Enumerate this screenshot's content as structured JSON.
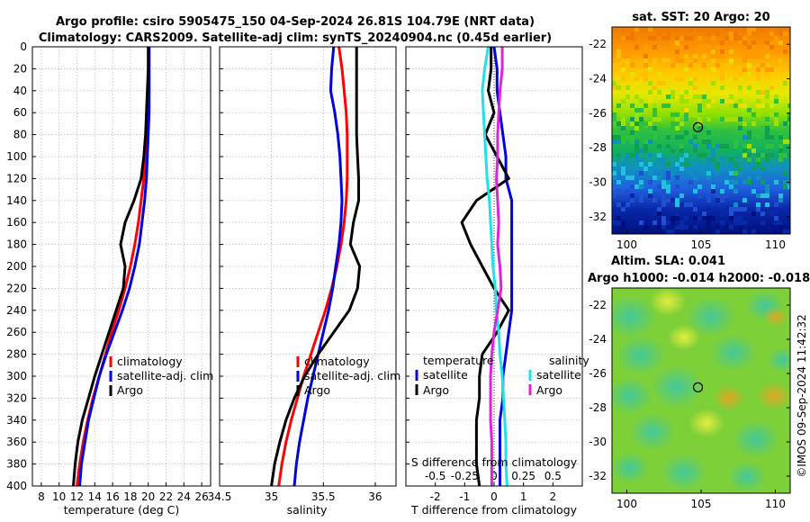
{
  "figure": {
    "title_line1": "Argo profile: csiro 5905475_150 04-Sep-2024 26.81S 104.79E (NRT data)",
    "title_line2": "Climatology: CARS2009. Satellite-adj clim: synTS_20240904.nc (0.45d earlier)",
    "copyright": "©IMOS 09-Sep-2024 11:42:32"
  },
  "colors": {
    "climatology": "#ff0000",
    "satellite": "#0000dd",
    "argo": "#000000",
    "satellite_salinity": "#22e0e8",
    "argo_salinity": "#dd22dd"
  },
  "chart_data": [
    {
      "type": "line",
      "id": "temperature",
      "xlabel": "temperature (deg C)",
      "ylabel": "",
      "xlim": [
        7,
        27
      ],
      "ylim": [
        400,
        0
      ],
      "xticks": [
        "8",
        "10",
        "12",
        "14",
        "16",
        "18",
        "20",
        "22",
        "24",
        "26"
      ],
      "xtick_values": [
        8,
        10,
        12,
        14,
        16,
        18,
        20,
        22,
        24,
        26
      ],
      "yticks": [
        "0",
        "20",
        "40",
        "60",
        "80",
        "100",
        "120",
        "140",
        "160",
        "180",
        "200",
        "220",
        "240",
        "260",
        "280",
        "300",
        "320",
        "340",
        "360",
        "380",
        "400"
      ],
      "grid": true,
      "legend": [
        "climatology",
        "satellite-adj. clim",
        "Argo"
      ],
      "series": [
        {
          "name": "climatology",
          "color": "#ff0000",
          "x": [
            20.1,
            20.1,
            20.1,
            20.0,
            19.9,
            19.7,
            19.5,
            19.2,
            18.9,
            18.5,
            18.0,
            17.4,
            16.7,
            15.9,
            15.2,
            14.5,
            13.8,
            13.2,
            12.7,
            12.3,
            12.0
          ],
          "y": [
            0,
            20,
            40,
            60,
            80,
            100,
            120,
            140,
            160,
            180,
            200,
            220,
            240,
            260,
            280,
            300,
            320,
            340,
            360,
            380,
            400
          ]
        },
        {
          "name": "satellite-adj. clim",
          "color": "#0000dd",
          "x": [
            20.1,
            20.1,
            20.1,
            20.1,
            20.0,
            19.9,
            19.8,
            19.6,
            19.3,
            19.0,
            18.5,
            17.9,
            17.1,
            16.2,
            15.3,
            14.5,
            13.9,
            13.3,
            12.9,
            12.5,
            12.3
          ],
          "y": [
            0,
            20,
            40,
            60,
            80,
            100,
            120,
            140,
            160,
            180,
            200,
            220,
            240,
            260,
            280,
            300,
            320,
            340,
            360,
            380,
            400
          ]
        },
        {
          "name": "Argo",
          "color": "#000000",
          "x": [
            20.0,
            20.0,
            19.9,
            19.8,
            19.7,
            19.5,
            19.2,
            18.4,
            17.4,
            16.9,
            17.4,
            17.2,
            16.4,
            15.6,
            14.8,
            14.0,
            13.3,
            12.6,
            12.1,
            11.8,
            11.6
          ],
          "y": [
            0,
            20,
            40,
            60,
            80,
            100,
            120,
            140,
            160,
            180,
            200,
            220,
            240,
            260,
            280,
            300,
            320,
            340,
            360,
            380,
            400
          ]
        }
      ]
    },
    {
      "type": "line",
      "id": "salinity",
      "xlabel": "salinity",
      "ylabel": "",
      "xlim": [
        34.5,
        36.2
      ],
      "ylim": [
        400,
        0
      ],
      "xticks": [
        "34.5",
        "35",
        "35.5",
        "36"
      ],
      "xtick_values": [
        34.5,
        35,
        35.5,
        36
      ],
      "grid": true,
      "legend": [
        "climatology",
        "satellite-adj. clim",
        "Argo"
      ],
      "series": [
        {
          "name": "climatology",
          "color": "#ff0000",
          "x": [
            35.65,
            35.68,
            35.7,
            35.72,
            35.73,
            35.73,
            35.73,
            35.72,
            35.7,
            35.67,
            35.63,
            35.58,
            35.52,
            35.45,
            35.38,
            35.31,
            35.25,
            35.19,
            35.14,
            35.1,
            35.07
          ],
          "y": [
            0,
            20,
            40,
            60,
            80,
            100,
            120,
            140,
            160,
            180,
            200,
            220,
            240,
            260,
            280,
            300,
            320,
            340,
            360,
            380,
            400
          ]
        },
        {
          "name": "satellite-adj. clim",
          "color": "#0000dd",
          "x": [
            35.6,
            35.58,
            35.57,
            35.61,
            35.64,
            35.66,
            35.67,
            35.68,
            35.67,
            35.65,
            35.62,
            35.59,
            35.55,
            35.5,
            35.45,
            35.4,
            35.35,
            35.31,
            35.27,
            35.24,
            35.22
          ],
          "y": [
            0,
            20,
            40,
            60,
            80,
            100,
            120,
            140,
            160,
            180,
            200,
            220,
            240,
            260,
            280,
            300,
            320,
            340,
            360,
            380,
            400
          ]
        },
        {
          "name": "Argo",
          "color": "#000000",
          "x": [
            35.82,
            35.82,
            35.82,
            35.82,
            35.82,
            35.83,
            35.84,
            35.84,
            35.79,
            35.76,
            35.85,
            35.83,
            35.75,
            35.6,
            35.45,
            35.32,
            35.22,
            35.14,
            35.08,
            35.03,
            35.0
          ],
          "y": [
            0,
            20,
            40,
            60,
            80,
            100,
            120,
            140,
            160,
            180,
            200,
            220,
            240,
            260,
            280,
            300,
            320,
            340,
            360,
            380,
            400
          ]
        }
      ]
    },
    {
      "type": "line",
      "id": "differences",
      "xlabel": "T difference from climatology",
      "xlabel_top": "S difference from climatology",
      "xlim": [
        -3,
        3
      ],
      "ylim": [
        400,
        0
      ],
      "xticks": [
        "-2",
        "-1",
        "0",
        "1",
        "2"
      ],
      "xtick_values": [
        -2,
        -1,
        0,
        1,
        2
      ],
      "xticks_top": [
        "-0.5",
        "-0.25",
        "0",
        "0.25",
        "0.5"
      ],
      "xtick_top_values": [
        -0.5,
        -0.25,
        0,
        0.25,
        0.5
      ],
      "legend_temperature_title": "temperature",
      "legend_salinity_title": "salinity",
      "legend_temperature": [
        "satellite",
        "Argo"
      ],
      "legend_salinity": [
        "satellite",
        "Argo"
      ],
      "series": [
        {
          "name": "temperature satellite",
          "color": "#0000dd",
          "x": [
            0.0,
            0.1,
            0.1,
            0.2,
            0.3,
            0.4,
            0.4,
            0.6,
            0.6,
            0.6,
            0.6,
            0.6,
            0.6,
            0.5,
            0.4,
            0.3,
            0.3,
            0.2,
            0.2,
            0.2,
            0.2
          ],
          "y": [
            0,
            20,
            40,
            60,
            80,
            100,
            120,
            140,
            160,
            180,
            200,
            220,
            240,
            260,
            280,
            300,
            320,
            340,
            360,
            380,
            400
          ]
        },
        {
          "name": "temperature Argo",
          "color": "#000000",
          "x": [
            -0.1,
            -0.1,
            -0.2,
            0.0,
            -0.3,
            0.1,
            0.5,
            -0.6,
            -1.1,
            -0.8,
            -0.4,
            0.0,
            0.5,
            0.1,
            -0.4,
            -0.5,
            -0.5,
            -0.6,
            -0.6,
            -0.6,
            -0.5
          ],
          "y": [
            0,
            20,
            40,
            60,
            80,
            100,
            120,
            140,
            160,
            180,
            200,
            220,
            240,
            260,
            280,
            300,
            320,
            340,
            360,
            380,
            400
          ]
        },
        {
          "name": "salinity satellite",
          "color": "#22e0e8",
          "x_salinity": [
            -0.05,
            -0.08,
            -0.1,
            -0.09,
            -0.08,
            -0.07,
            -0.06,
            -0.04,
            -0.03,
            -0.02,
            -0.01,
            0.01,
            0.02,
            0.04,
            0.05,
            0.07,
            0.08,
            0.09,
            0.1,
            0.1,
            0.11
          ],
          "y": [
            0,
            20,
            40,
            60,
            80,
            100,
            120,
            140,
            160,
            180,
            200,
            220,
            240,
            260,
            280,
            300,
            320,
            340,
            360,
            380,
            400
          ]
        },
        {
          "name": "salinity Argo",
          "color": "#dd22dd",
          "x_salinity": [
            0.07,
            0.07,
            0.05,
            0.04,
            0.03,
            0.03,
            0.02,
            0.03,
            0.04,
            0.03,
            0.05,
            0.06,
            0.03,
            0.0,
            -0.02,
            -0.03,
            -0.03,
            -0.03,
            -0.02,
            -0.02,
            -0.02
          ],
          "y": [
            0,
            20,
            40,
            60,
            80,
            100,
            120,
            140,
            160,
            180,
            200,
            220,
            240,
            260,
            280,
            300,
            320,
            340,
            360,
            380,
            400
          ]
        }
      ]
    },
    {
      "type": "heatmap",
      "id": "sst_map",
      "title": "sat. SST: 20 Argo: 20",
      "xlim": [
        99,
        111
      ],
      "ylim": [
        -33,
        -21
      ],
      "xticks": [
        "100",
        "105",
        "110"
      ],
      "xtick_values": [
        100,
        105,
        110
      ],
      "yticks": [
        "-22",
        "-24",
        "-26",
        "-28",
        "-30",
        "-32"
      ],
      "ytick_values": [
        -22,
        -24,
        -26,
        -28,
        -30,
        -32
      ],
      "marker": {
        "lon": 104.79,
        "lat": -26.81
      }
    },
    {
      "type": "heatmap",
      "id": "sla_map",
      "title_line1": "Altim. SLA: 0.041",
      "title_line2": "Argo h1000: -0.014 h2000: -0.018",
      "xlim": [
        99,
        111
      ],
      "ylim": [
        -33,
        -21
      ],
      "xticks": [
        "100",
        "105",
        "110"
      ],
      "xtick_values": [
        100,
        105,
        110
      ],
      "yticks": [
        "-22",
        "-24",
        "-26",
        "-28",
        "-30",
        "-32"
      ],
      "ytick_values": [
        -22,
        -24,
        -26,
        -28,
        -30,
        -32
      ],
      "marker": {
        "lon": 104.79,
        "lat": -26.81
      }
    }
  ]
}
